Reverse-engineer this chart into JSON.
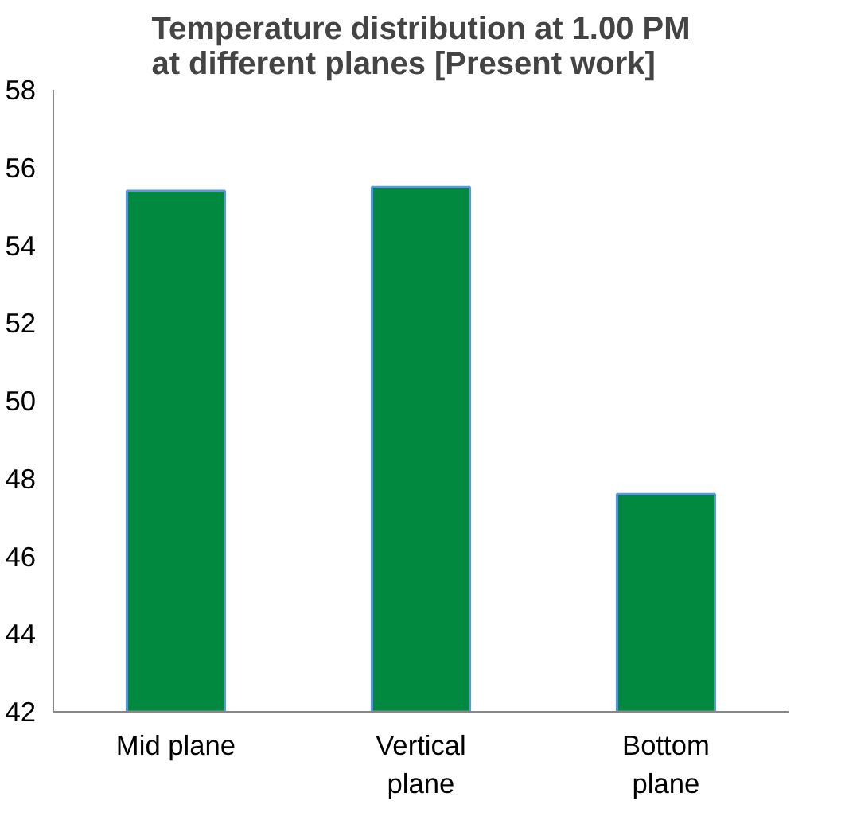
{
  "chart_data": {
    "type": "bar",
    "title": "Temperature distribution at 1.00 PM\nat different planes [Present work]",
    "categories": [
      "Mid plane",
      "Vertical\nplane",
      "Bottom\nplane"
    ],
    "values": [
      55.4,
      55.5,
      47.6
    ],
    "color": "#00893f",
    "ylim": [
      42,
      58
    ],
    "yticks": [
      42,
      44,
      46,
      48,
      50,
      52,
      54,
      56,
      58
    ],
    "grid": false
  }
}
